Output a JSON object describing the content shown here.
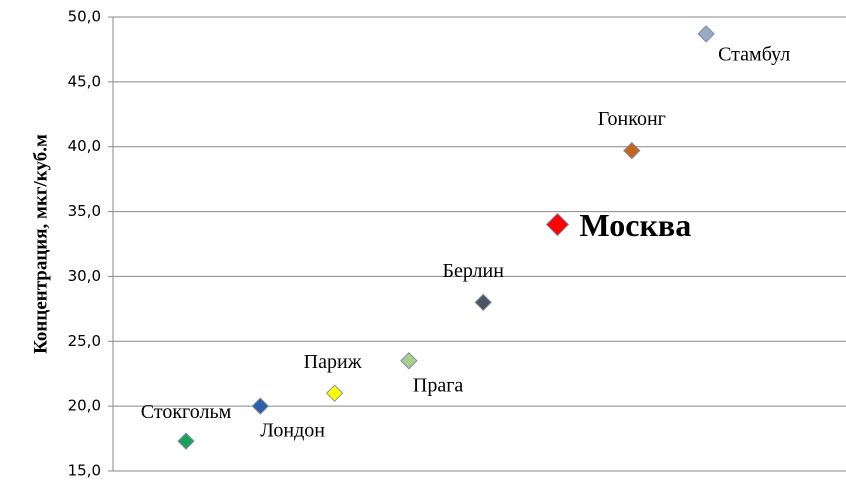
{
  "chart_data": {
    "type": "scatter",
    "ylabel": "Концентрация, мкг/куб.м",
    "categories": [
      "Стокгольм",
      "Лондон",
      "Париж",
      "Прага",
      "Берлин",
      "Москва",
      "Гонконг",
      "Стамбул"
    ],
    "values": [
      17.3,
      20.0,
      21.0,
      23.5,
      28.0,
      34.0,
      39.7,
      48.7
    ],
    "colors": [
      "#1aa05a",
      "#2e5fa8",
      "#ffff00",
      "#a8d08d",
      "#4a5560",
      "#ff0000",
      "#c5651c",
      "#9aaac4"
    ],
    "ylim": [
      15,
      50
    ],
    "yticks": [
      {
        "value": 15,
        "label": "15,0"
      },
      {
        "value": 20,
        "label": "20,0"
      },
      {
        "value": 25,
        "label": "25,0"
      },
      {
        "value": 30,
        "label": "30,0"
      },
      {
        "value": 35,
        "label": "35,0"
      },
      {
        "value": 40,
        "label": "40,0"
      },
      {
        "value": 45,
        "label": "45,0"
      },
      {
        "value": 50,
        "label": "50,0"
      }
    ],
    "grid": true
  }
}
